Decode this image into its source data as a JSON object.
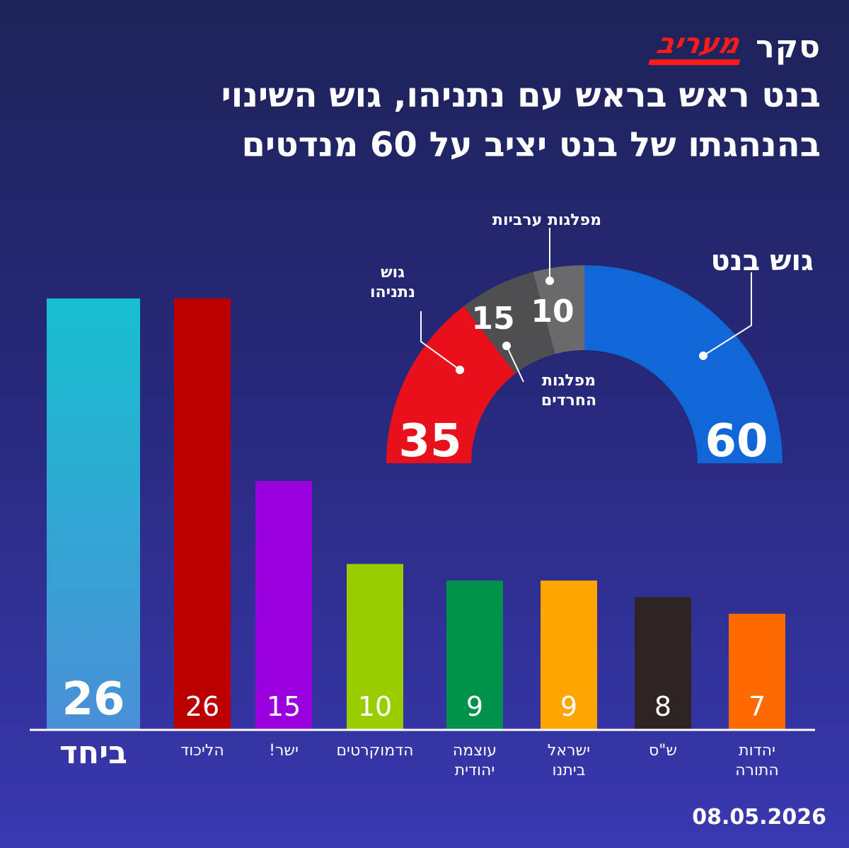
{
  "header": {
    "survey_word": "סקר",
    "logo_text": "מעריב",
    "title_line1": "בנט ראש בראש עם נתניהו, גוש השינוי",
    "title_line2": "בהנהגתו של בנט יציב על 60 מנדטים"
  },
  "blocs": {
    "bennett_label": "גוש בנט",
    "netanyahu_label_line1": "גוש",
    "netanyahu_label_line2": "נתניהו",
    "arab_label": "מפלגות ערביות",
    "haredi_label_line1": "מפלגות",
    "haredi_label_line2": "החרדים"
  },
  "date": "08.05.2026",
  "colors": {
    "bennett": "#1166d8",
    "netanyahu": "#e8101a",
    "haredi": "#4f4f52",
    "arab": "#6a6a6d"
  },
  "chart_data": [
    {
      "type": "pie",
      "variant": "half-donut",
      "categories": [
        "גוש נתניהו",
        "מפלגות החרדים",
        "מפלגות ערביות",
        "גוש בנט"
      ],
      "values": [
        35,
        15,
        10,
        60
      ],
      "value_labels": [
        "35",
        "15",
        "10",
        "60"
      ],
      "colors": [
        "#e8101a",
        "#4f4f52",
        "#6a6a6d",
        "#1166d8"
      ]
    },
    {
      "type": "bar",
      "categories": [
        "ביחד",
        "הליכוד",
        "ישר!",
        "הדמוקרטים",
        "עוצמה יהודית",
        "ישראל ביתנו",
        "ש\"ס",
        "יהדות התורה"
      ],
      "category_lines": [
        [
          "ביחד"
        ],
        [
          "הליכוד"
        ],
        [
          "ישר!"
        ],
        [
          "הדמוקרטים"
        ],
        [
          "עוצמה",
          "יהודית"
        ],
        [
          "ישראל",
          "ביתנו"
        ],
        [
          "ש\"ס"
        ],
        [
          "יהדות",
          "התורה"
        ]
      ],
      "values": [
        26,
        26,
        15,
        10,
        9,
        9,
        8,
        7
      ],
      "value_labels": [
        "26",
        "26",
        "15",
        "10",
        "9",
        "9",
        "8",
        "7"
      ],
      "colors": [
        "#2aa8d8",
        "#bb0000",
        "#9900dd",
        "#9acd00",
        "#00914a",
        "#ffa500",
        "#2e2424",
        "#ff6a00"
      ],
      "ylim": [
        0,
        26
      ]
    }
  ]
}
